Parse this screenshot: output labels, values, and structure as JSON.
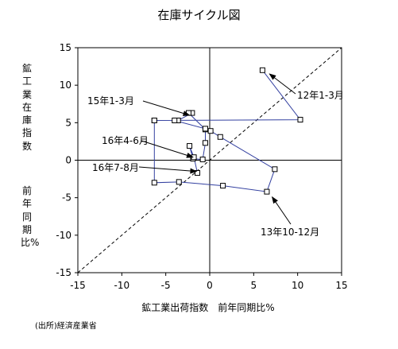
{
  "chart_data": {
    "type": "scatter",
    "title": "在庫サイクル図",
    "ylabel_lines": [
      "鉱工業在庫指数",
      "前年同期比%"
    ],
    "xlabel": "鉱工業出荷指数　前年同期比%",
    "source": "(出所)経済産業省",
    "xlim": [
      -15,
      15
    ],
    "ylim": [
      -15,
      15
    ],
    "x_ticks": [
      -15,
      -10,
      -5,
      0,
      5,
      10,
      15
    ],
    "y_ticks": [
      15,
      10,
      5,
      0,
      -5,
      -10,
      -15
    ],
    "x_tick_labels": [
      "-15",
      "-10",
      "-5",
      "0",
      "5",
      "10",
      "15"
    ],
    "y_tick_labels": [
      "15",
      "10",
      "5",
      "0",
      "-5",
      "-10",
      "-15"
    ],
    "grid": false,
    "reference_line": {
      "style": "dashed",
      "from": [
        -15,
        -15
      ],
      "to": [
        15,
        15
      ]
    },
    "series": [
      {
        "color": "#3340a0",
        "marker": "open-square",
        "points": [
          [
            6.0,
            12.0
          ],
          [
            10.3,
            5.4
          ],
          [
            -6.3,
            5.3
          ],
          [
            -3.6,
            5.3
          ],
          [
            -2.0,
            6.3
          ],
          [
            -2.4,
            6.3
          ],
          [
            -0.5,
            4.1
          ],
          [
            0.1,
            3.9
          ],
          [
            1.2,
            3.1
          ],
          [
            7.4,
            -1.2
          ],
          [
            6.5,
            -4.2
          ],
          [
            1.5,
            -3.4
          ],
          [
            -3.5,
            -2.9
          ],
          [
            -6.3,
            -3.0
          ],
          [
            -6.3,
            5.3
          ],
          [
            -4.0,
            5.3
          ],
          [
            -0.5,
            4.2
          ],
          [
            -0.5,
            2.3
          ],
          [
            -0.8,
            0.1
          ],
          [
            -1.9,
            0.2
          ],
          [
            -2.3,
            1.9
          ],
          [
            -1.8,
            0.4
          ],
          [
            -1.4,
            -1.7
          ]
        ]
      }
    ],
    "annotations": [
      {
        "text": "12年1-3月",
        "arrow_to": [
          6.8,
          11.5
        ]
      },
      {
        "text": "15年1-3月",
        "arrow_to": [
          -2.3,
          6.0
        ]
      },
      {
        "text": "16年4-6月",
        "arrow_to": [
          -1.9,
          0.4
        ]
      },
      {
        "text": "16年7-8月",
        "arrow_to": [
          -1.5,
          -1.5
        ]
      },
      {
        "text": "13年10-12月",
        "arrow_to": [
          7.1,
          -4.9
        ]
      }
    ]
  }
}
